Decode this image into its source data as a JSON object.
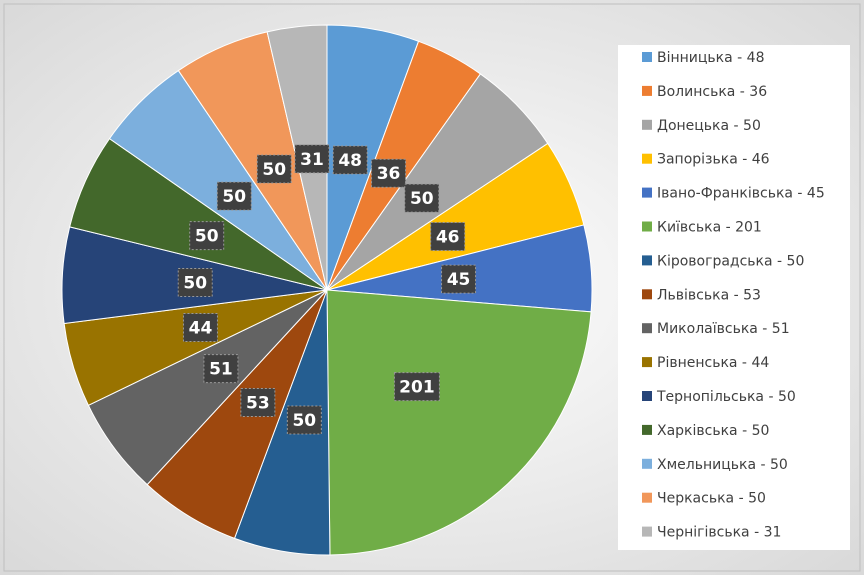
{
  "chart_data": {
    "type": "pie",
    "categories": [
      "Вінницька - 48",
      "Волинська - 36",
      "Донецька - 50",
      "Запорізька - 46",
      "Івано-Франківська - 45",
      "Київська - 201",
      "Кіровоградська - 50",
      "Львівська - 53",
      "Миколаївська - 51",
      "Рівненська - 44",
      "Тернопільська - 50",
      "Харківська - 50",
      "Хмельницька - 50",
      "Черкаська - 50",
      "Чернігівська - 31"
    ],
    "values": [
      48,
      36,
      50,
      46,
      45,
      201,
      50,
      53,
      51,
      44,
      50,
      50,
      50,
      50,
      31
    ],
    "colors": [
      "#5b9bd5",
      "#ed7d31",
      "#a5a5a5",
      "#ffc000",
      "#4472c4",
      "#70ad47",
      "#255e91",
      "#9e480e",
      "#636363",
      "#997300",
      "#264478",
      "#43682b",
      "#7cafdd",
      "#f1975a",
      "#b7b7b7"
    ],
    "legend": "right"
  }
}
